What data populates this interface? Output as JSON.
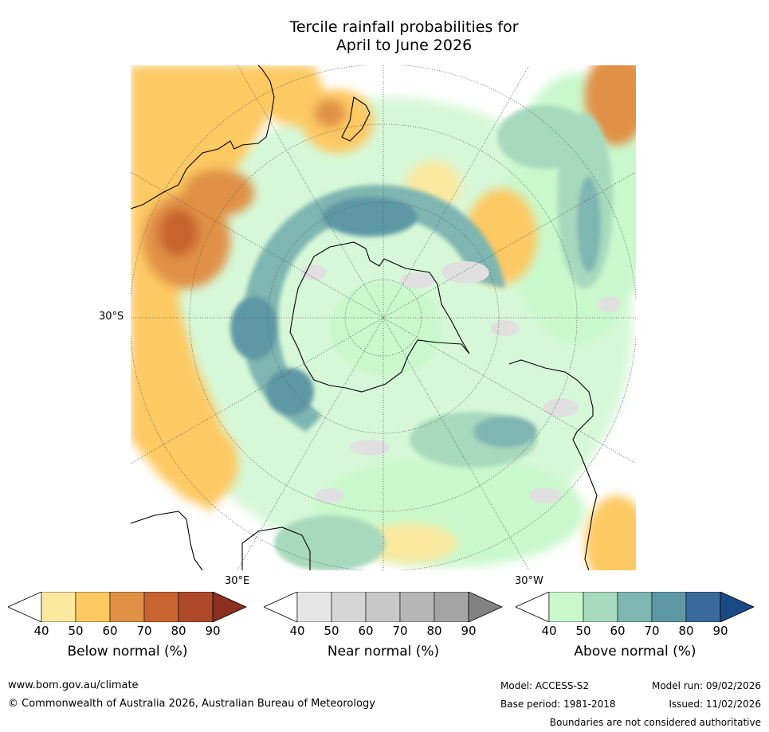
{
  "title": {
    "line1": "Tercile rainfall probabilities for",
    "line2": "April to June 2026"
  },
  "map": {
    "labels": {
      "lat_30s": "30°S",
      "lon_30e": "30°E",
      "lon_30w": "30°W"
    }
  },
  "legends": [
    {
      "title": "Below normal (%)",
      "ticks": [
        "40",
        "50",
        "60",
        "70",
        "80",
        "90"
      ],
      "colors": [
        "#fbe9a0",
        "#fdc963",
        "#e09146",
        "#c8642f",
        "#ae4a2a",
        "#8c2f1e"
      ]
    },
    {
      "title": "Near normal (%)",
      "ticks": [
        "40",
        "50",
        "60",
        "70",
        "80",
        "90"
      ],
      "colors": [
        "#e6e6e6",
        "#d6d6d6",
        "#c8c8c8",
        "#b6b6b6",
        "#a4a4a4",
        "#828282"
      ]
    },
    {
      "title": "Above normal (%)",
      "ticks": [
        "40",
        "50",
        "60",
        "70",
        "80",
        "90"
      ],
      "colors": [
        "#c9f8cc",
        "#a7d9bd",
        "#7fb6b1",
        "#5f98a5",
        "#3a6a9c",
        "#1a4a86"
      ]
    }
  ],
  "footer": {
    "website": "www.bom.gov.au/climate",
    "copyright": "© Commonwealth of Australia 2026, Australian Bureau of Meteorology",
    "model": "Model: ACCESS-S2",
    "base_period": "Base period: 1981-2018",
    "model_run": "Model run: 09/02/2026",
    "issued": "Issued: 11/02/2026",
    "disclaimer": "Boundaries are not considered authoritative"
  }
}
